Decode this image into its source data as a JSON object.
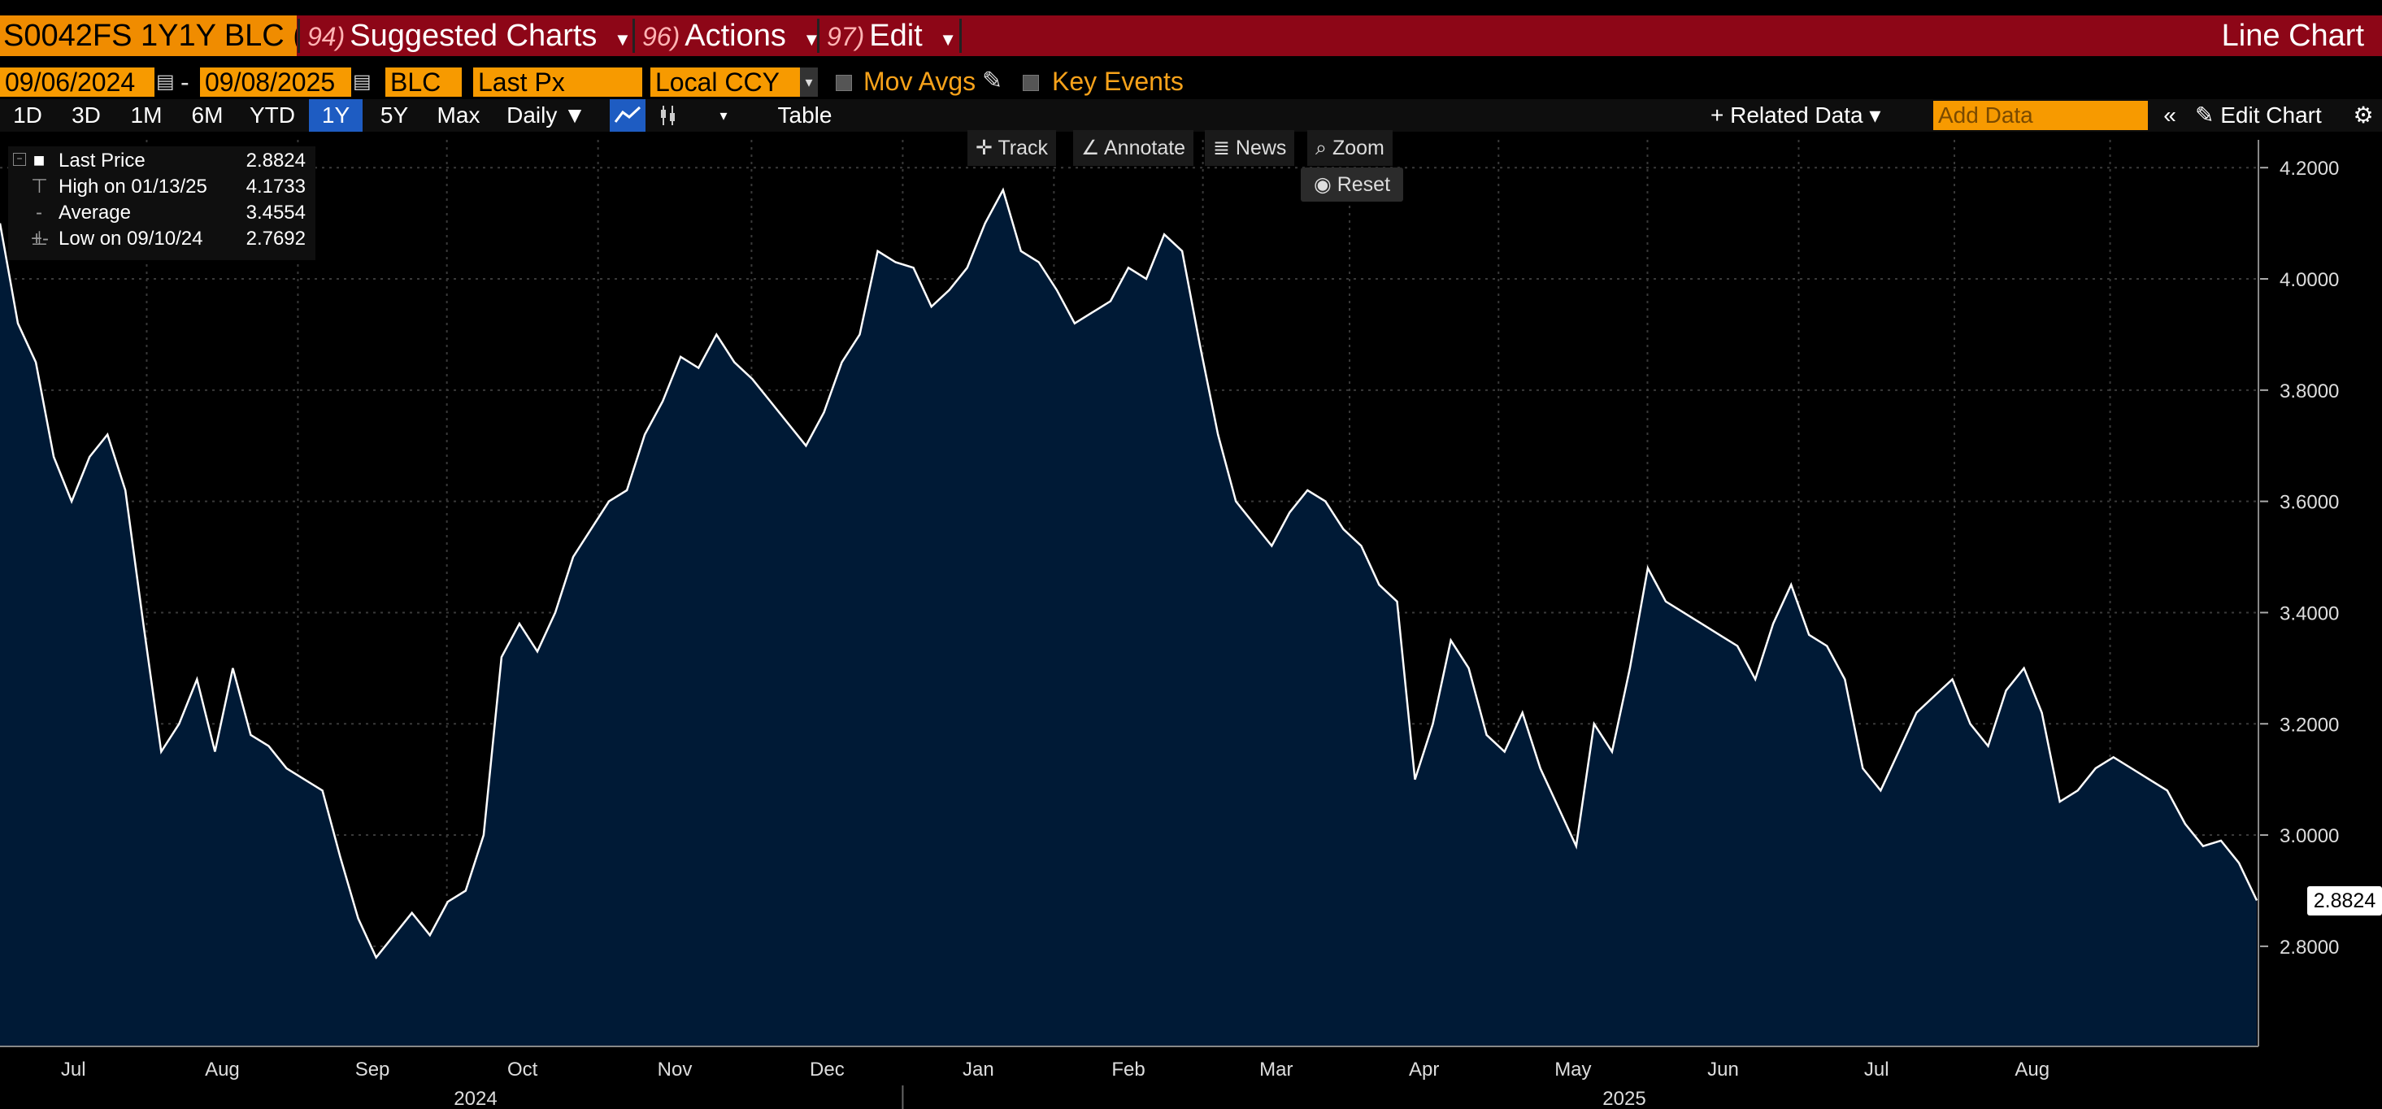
{
  "header": {
    "ticker": "S0042FS 1Y1Y BLC (",
    "menus": [
      {
        "num": "94)",
        "label": "Suggested Charts"
      },
      {
        "num": "96)",
        "label": "Actions"
      },
      {
        "num": "97)",
        "label": "Edit"
      }
    ],
    "chart_type": "Line Chart"
  },
  "controls": {
    "start_date": "09/06/2024",
    "end_date": "09/08/2025",
    "source": "BLC",
    "field": "Last Px",
    "currency": "Local CCY",
    "mov_avgs": "Mov Avgs",
    "key_events": "Key Events"
  },
  "toolbar": {
    "ranges": [
      "1D",
      "3D",
      "1M",
      "6M",
      "YTD",
      "1Y",
      "5Y",
      "Max"
    ],
    "selected_range": "1Y",
    "period": "Daily ▼",
    "table": "Table",
    "related_data": "+ Related Data ▾",
    "add_data_placeholder": "Add Data",
    "edit_chart": "Edit Chart"
  },
  "chart_tools": {
    "track": "Track",
    "annotate": "Annotate",
    "news": "News",
    "zoom": "Zoom",
    "reset": "Reset"
  },
  "legend": {
    "last_label": "Last Price",
    "last_value": "2.8824",
    "high_label": "High on 01/13/25",
    "high_value": "4.1733",
    "avg_label": "Average",
    "avg_value": "3.4554",
    "low_label": "Low on 09/10/24",
    "low_value": "2.7692"
  },
  "colors": {
    "accent": "#f79a00",
    "header_bg": "#8d0617",
    "fill": "#001a36",
    "line": "#ffffff"
  },
  "chart_data": {
    "type": "area",
    "series_name": "Last Price",
    "ylim": [
      2.62,
      4.25
    ],
    "yticks": [
      2.8,
      3.0,
      3.2,
      3.4,
      3.6,
      3.8,
      4.0,
      4.2
    ],
    "ytick_labels": [
      "2.8000",
      "3.0000",
      "3.2000",
      "3.4000",
      "3.6000",
      "3.8000",
      "4.0000",
      "4.2000"
    ],
    "month_labels": [
      "Jul",
      "Aug",
      "Sep",
      "Oct",
      "Nov",
      "Dec",
      "Jan",
      "Feb",
      "Mar",
      "Apr",
      "May",
      "Jun",
      "Jul",
      "Aug"
    ],
    "year_labels": [
      "2024",
      "2025"
    ],
    "last_value_label": "2.8824",
    "values": [
      4.1,
      3.92,
      3.85,
      3.68,
      3.6,
      3.68,
      3.72,
      3.62,
      3.38,
      3.15,
      3.2,
      3.28,
      3.15,
      3.3,
      3.18,
      3.16,
      3.12,
      3.1,
      3.08,
      2.96,
      2.85,
      2.78,
      2.82,
      2.86,
      2.82,
      2.88,
      2.9,
      3.0,
      3.32,
      3.38,
      3.33,
      3.4,
      3.5,
      3.55,
      3.6,
      3.62,
      3.72,
      3.78,
      3.86,
      3.84,
      3.9,
      3.85,
      3.82,
      3.78,
      3.74,
      3.7,
      3.76,
      3.85,
      3.9,
      4.05,
      4.03,
      4.02,
      3.95,
      3.98,
      4.02,
      4.1,
      4.16,
      4.05,
      4.03,
      3.98,
      3.92,
      3.94,
      3.96,
      4.02,
      4.0,
      4.08,
      4.05,
      3.88,
      3.72,
      3.6,
      3.56,
      3.52,
      3.58,
      3.62,
      3.6,
      3.55,
      3.52,
      3.45,
      3.42,
      3.1,
      3.2,
      3.35,
      3.3,
      3.18,
      3.15,
      3.22,
      3.12,
      3.05,
      2.98,
      3.2,
      3.15,
      3.3,
      3.48,
      3.42,
      3.4,
      3.38,
      3.36,
      3.34,
      3.28,
      3.38,
      3.45,
      3.36,
      3.34,
      3.28,
      3.12,
      3.08,
      3.15,
      3.22,
      3.25,
      3.28,
      3.2,
      3.16,
      3.26,
      3.3,
      3.22,
      3.06,
      3.08,
      3.12,
      3.14,
      3.12,
      3.1,
      3.08,
      3.02,
      2.98,
      2.99,
      2.95,
      2.8824
    ]
  }
}
